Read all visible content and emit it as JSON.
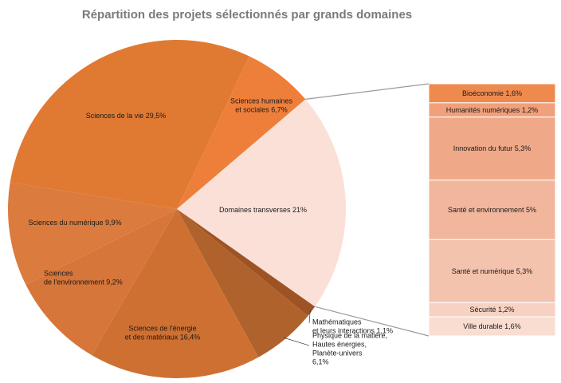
{
  "chart_data": {
    "type": "pie",
    "title": "Répartition des projets sélectionnés par grands domaines",
    "unit": "%",
    "slices": [
      {
        "label_lines": [
          "Sciences humaines",
          "et sociales 6,7%"
        ],
        "value": 6.7,
        "color": "#ee7f3a"
      },
      {
        "label_lines": [
          "Domaines transverses 21%"
        ],
        "value": 21,
        "color": "#fbe0d7"
      },
      {
        "label_lines": [
          "Mathématiques",
          "et leurs interactions 1,1%"
        ],
        "value": 1.1,
        "color": "#9e5324"
      },
      {
        "label_lines": [
          "Physique de la matière,",
          "Hautes énergies,",
          "Planète-univers",
          "6,1%"
        ],
        "value": 6.1,
        "color": "#b0622d"
      },
      {
        "label_lines": [
          "Sciences de l'énergie",
          "et des matériaux 16,4%"
        ],
        "value": 16.4,
        "color": "#cf7033"
      },
      {
        "label_lines": [
          "Sciences",
          "de l'environnement 9,2%"
        ],
        "value": 9.2,
        "color": "#d6763a"
      },
      {
        "label_lines": [
          "Sciences du numérique 9,9%"
        ],
        "value": 9.9,
        "color": "#db7b3d"
      },
      {
        "label_lines": [
          "Sciences de la vie 29,5%"
        ],
        "value": 29.5,
        "color": "#e07a33"
      }
    ],
    "breakdown": {
      "of": "Domaines transverses 21%",
      "items": [
        {
          "label": "Bioéconomie 1,6%",
          "value": 1.6,
          "color": "#ef8a4e"
        },
        {
          "label": "Humanités numériques 1,2%",
          "value": 1.2,
          "color": "#f0a07a"
        },
        {
          "label": "Innovation du futur 5,3%",
          "value": 5.3,
          "color": "#f0a988"
        },
        {
          "label": "Santé et environnement 5%",
          "value": 5,
          "color": "#f2b69c"
        },
        {
          "label": "Santé et numérique 5,3%",
          "value": 5.3,
          "color": "#f4c3ae"
        },
        {
          "label": "Sécurité 1,2%",
          "value": 1.2,
          "color": "#f7d2c2"
        },
        {
          "label": "Ville durable 1,6%",
          "value": 1.6,
          "color": "#f9ddd1"
        }
      ]
    }
  }
}
